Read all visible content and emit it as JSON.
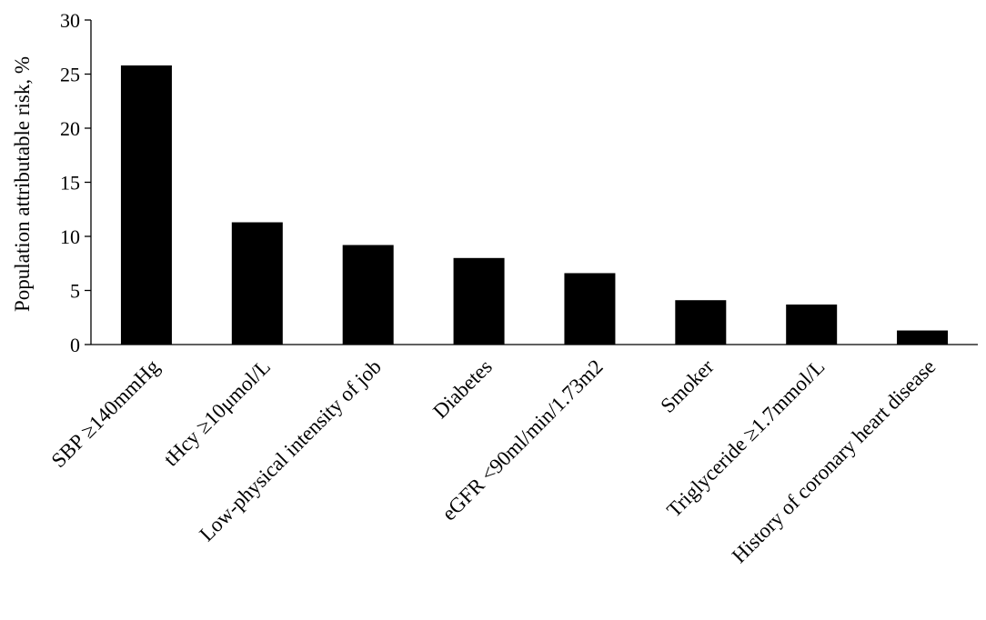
{
  "chart_data": {
    "type": "bar",
    "title": "",
    "xlabel": "",
    "ylabel": "Population attributable risk, %",
    "ylim": [
      0,
      30
    ],
    "yticks": [
      0,
      5,
      10,
      15,
      20,
      25,
      30
    ],
    "grid": false,
    "legend": "none",
    "categories": [
      "SBP ≥140mmHg",
      "tHcy ≥10μmol/L",
      "Low-physical intensity of job",
      "Diabetes",
      "eGFR <90ml/min/1.73m2",
      "Smoker",
      "Triglyceride ≥1.7mmol/L",
      "History of coronary heart disease"
    ],
    "values": [
      25.8,
      11.3,
      9.2,
      8.0,
      6.6,
      4.1,
      3.7,
      1.3
    ],
    "bar_color": "#000000"
  }
}
